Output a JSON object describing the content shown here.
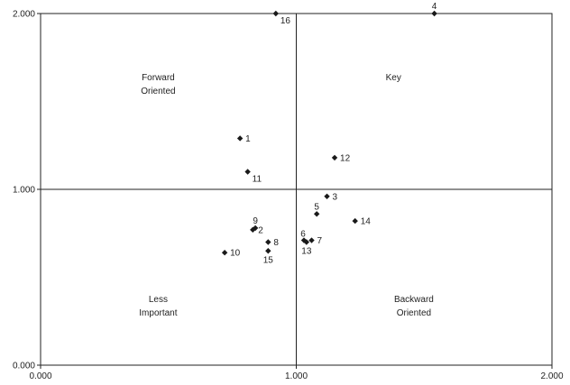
{
  "chart_data": {
    "type": "scatter",
    "title": "",
    "xlabel": "",
    "ylabel": "",
    "xlim": [
      0,
      2
    ],
    "ylim": [
      0,
      2
    ],
    "x_ticks": [
      "0.000",
      "1.000",
      "2.000"
    ],
    "y_ticks": [
      "0.000",
      "1.000",
      "2.000"
    ],
    "reference_lines": {
      "x": 1.0,
      "y": 1.0
    },
    "marker_color": "#1a1a1a",
    "quadrant_labels": [
      {
        "name": "forward-oriented",
        "lines": [
          "Forward",
          "Oriented"
        ],
        "x": 0.46,
        "y": 1.62
      },
      {
        "name": "key",
        "lines": [
          "Key"
        ],
        "x": 1.38,
        "y": 1.62
      },
      {
        "name": "less-important",
        "lines": [
          "Less",
          "Important"
        ],
        "x": 0.46,
        "y": 0.36
      },
      {
        "name": "backward-oriented",
        "lines": [
          "Backward",
          "Oriented"
        ],
        "x": 1.46,
        "y": 0.36
      }
    ],
    "points": [
      {
        "label": "1",
        "x": 0.78,
        "y": 1.29,
        "pos": "right"
      },
      {
        "label": "2",
        "x": 0.83,
        "y": 0.77,
        "pos": "right"
      },
      {
        "label": "3",
        "x": 1.12,
        "y": 0.96,
        "pos": "right"
      },
      {
        "label": "4",
        "x": 1.54,
        "y": 2.0,
        "pos": "above"
      },
      {
        "label": "5",
        "x": 1.08,
        "y": 0.86,
        "pos": "above"
      },
      {
        "label": "6",
        "x": 1.03,
        "y": 0.71,
        "pos": "above-left"
      },
      {
        "label": "7",
        "x": 1.06,
        "y": 0.71,
        "pos": "right"
      },
      {
        "label": "8",
        "x": 0.89,
        "y": 0.7,
        "pos": "right"
      },
      {
        "label": "9",
        "x": 0.84,
        "y": 0.78,
        "pos": "above"
      },
      {
        "label": "10",
        "x": 0.72,
        "y": 0.64,
        "pos": "right"
      },
      {
        "label": "11",
        "x": 0.81,
        "y": 1.1,
        "pos": "below-right"
      },
      {
        "label": "12",
        "x": 1.15,
        "y": 1.18,
        "pos": "right"
      },
      {
        "label": "13",
        "x": 1.04,
        "y": 0.7,
        "pos": "below"
      },
      {
        "label": "14",
        "x": 1.23,
        "y": 0.82,
        "pos": "right"
      },
      {
        "label": "15",
        "x": 0.89,
        "y": 0.65,
        "pos": "below"
      },
      {
        "label": "16",
        "x": 0.92,
        "y": 2.0,
        "pos": "below-right"
      }
    ]
  }
}
